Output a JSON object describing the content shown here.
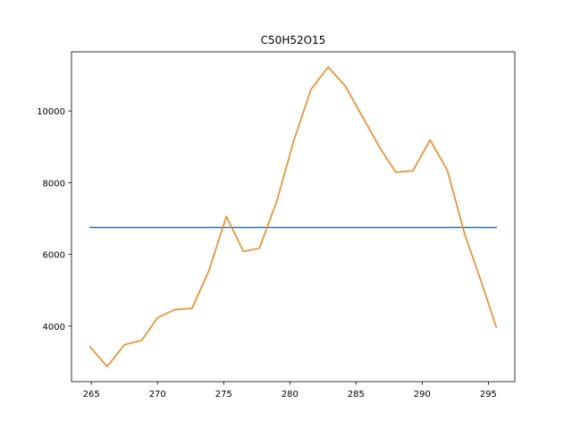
{
  "chart_data": {
    "type": "line",
    "title": "C50H52O15",
    "xlabel": "",
    "ylabel": "",
    "xlim": [
      263.5,
      297.0
    ],
    "ylim": [
      2450,
      11650
    ],
    "grid": false,
    "x_ticks": [
      265,
      270,
      275,
      280,
      285,
      290,
      295
    ],
    "y_ticks": [
      4000,
      6000,
      8000,
      10000
    ],
    "series": [
      {
        "color": "#1f77b4",
        "x": [
          264.9,
          295.6
        ],
        "y": [
          6750,
          6750
        ]
      },
      {
        "color": "#ff7f0e",
        "x": [
          264.9,
          266.2,
          267.5,
          268.8,
          270.0,
          271.3,
          272.6,
          273.9,
          275.2,
          276.5,
          277.7,
          279.0,
          280.3,
          281.6,
          282.9,
          284.2,
          285.5,
          286.8,
          288.0,
          289.3,
          290.6,
          291.9,
          293.2,
          294.5,
          295.6
        ],
        "y": [
          3420,
          2870,
          3480,
          3600,
          4230,
          4460,
          4490,
          5560,
          7060,
          6080,
          6170,
          7470,
          9180,
          10600,
          11230,
          10690,
          9830,
          8980,
          8290,
          8330,
          9190,
          8350,
          6580,
          5200,
          3970
        ]
      }
    ]
  }
}
